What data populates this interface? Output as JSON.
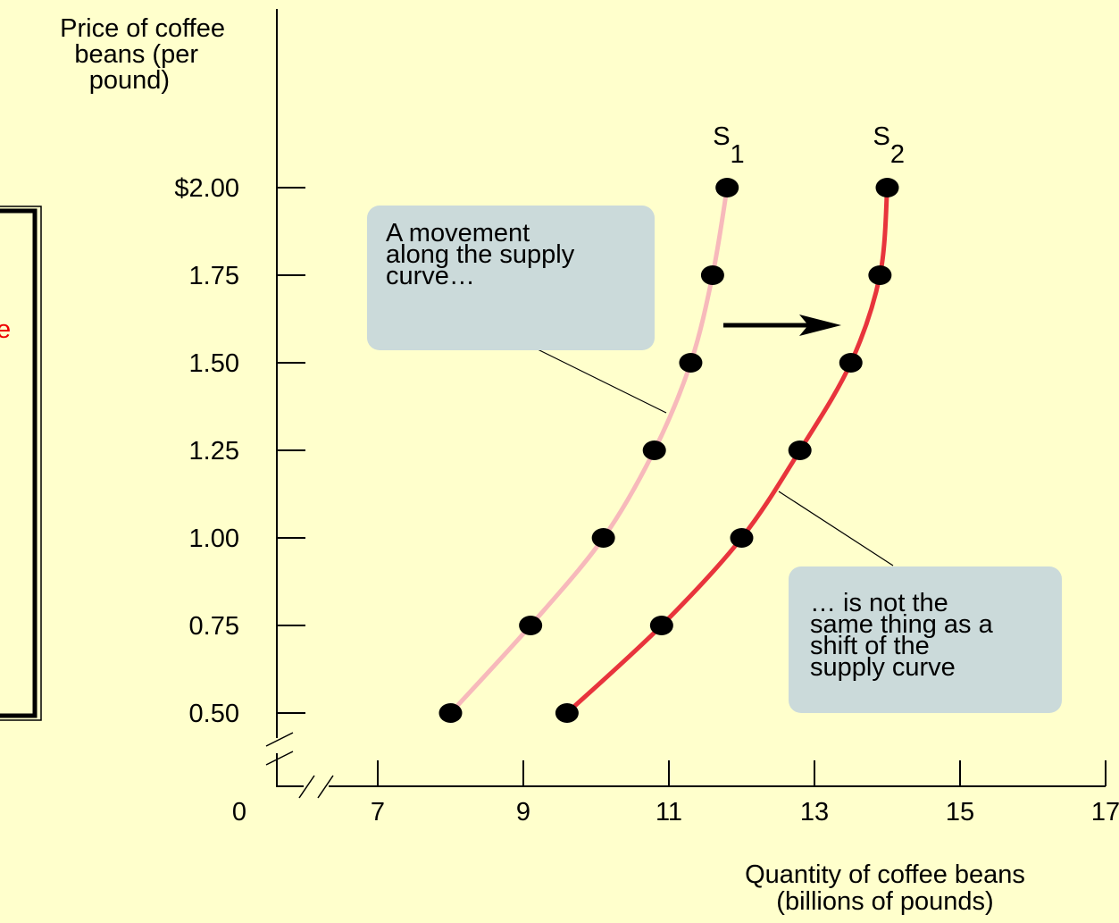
{
  "chart_data": {
    "type": "line",
    "y_axis_label": [
      "Price of coffee",
      "beans (per",
      "pound)"
    ],
    "x_axis_label": [
      "Quantity of coffee beans",
      "(billions of pounds)"
    ],
    "origin_label": "0",
    "fragment": "e",
    "xlim": [
      5.6,
      17
    ],
    "ylim": [
      0.2,
      2.5
    ],
    "xticks": [
      7,
      9,
      11,
      13,
      15,
      17
    ],
    "yticks": [
      {
        "value": 2,
        "label": "$2.00"
      },
      1.75,
      {
        "value": 1.5,
        "label": "1.50"
      },
      1.25,
      {
        "value": 1,
        "label": "1.00"
      },
      0.75,
      {
        "value": 0.5,
        "label": "0.50"
      }
    ],
    "series": [
      {
        "name": "S",
        "subscript": "1",
        "color": "#f7b9bb",
        "x": [
          8.0,
          9.1,
          10.1,
          10.8,
          11.3,
          11.6,
          11.8
        ],
        "values": [
          0.5,
          0.75,
          1.0,
          1.25,
          1.5,
          1.75,
          2.0
        ]
      },
      {
        "name": "S",
        "subscript": "2",
        "color": "#e8343c",
        "x": [
          9.6,
          10.9,
          12.0,
          12.8,
          13.5,
          13.9,
          14.0
        ],
        "values": [
          0.5,
          0.75,
          1.0,
          1.25,
          1.5,
          1.75,
          2.0
        ]
      }
    ],
    "annotations": [
      [
        "A movement",
        "along the supply",
        "curve…"
      ],
      [
        "… is not the",
        "same thing as a",
        "shift of the",
        "supply curve"
      ]
    ]
  }
}
